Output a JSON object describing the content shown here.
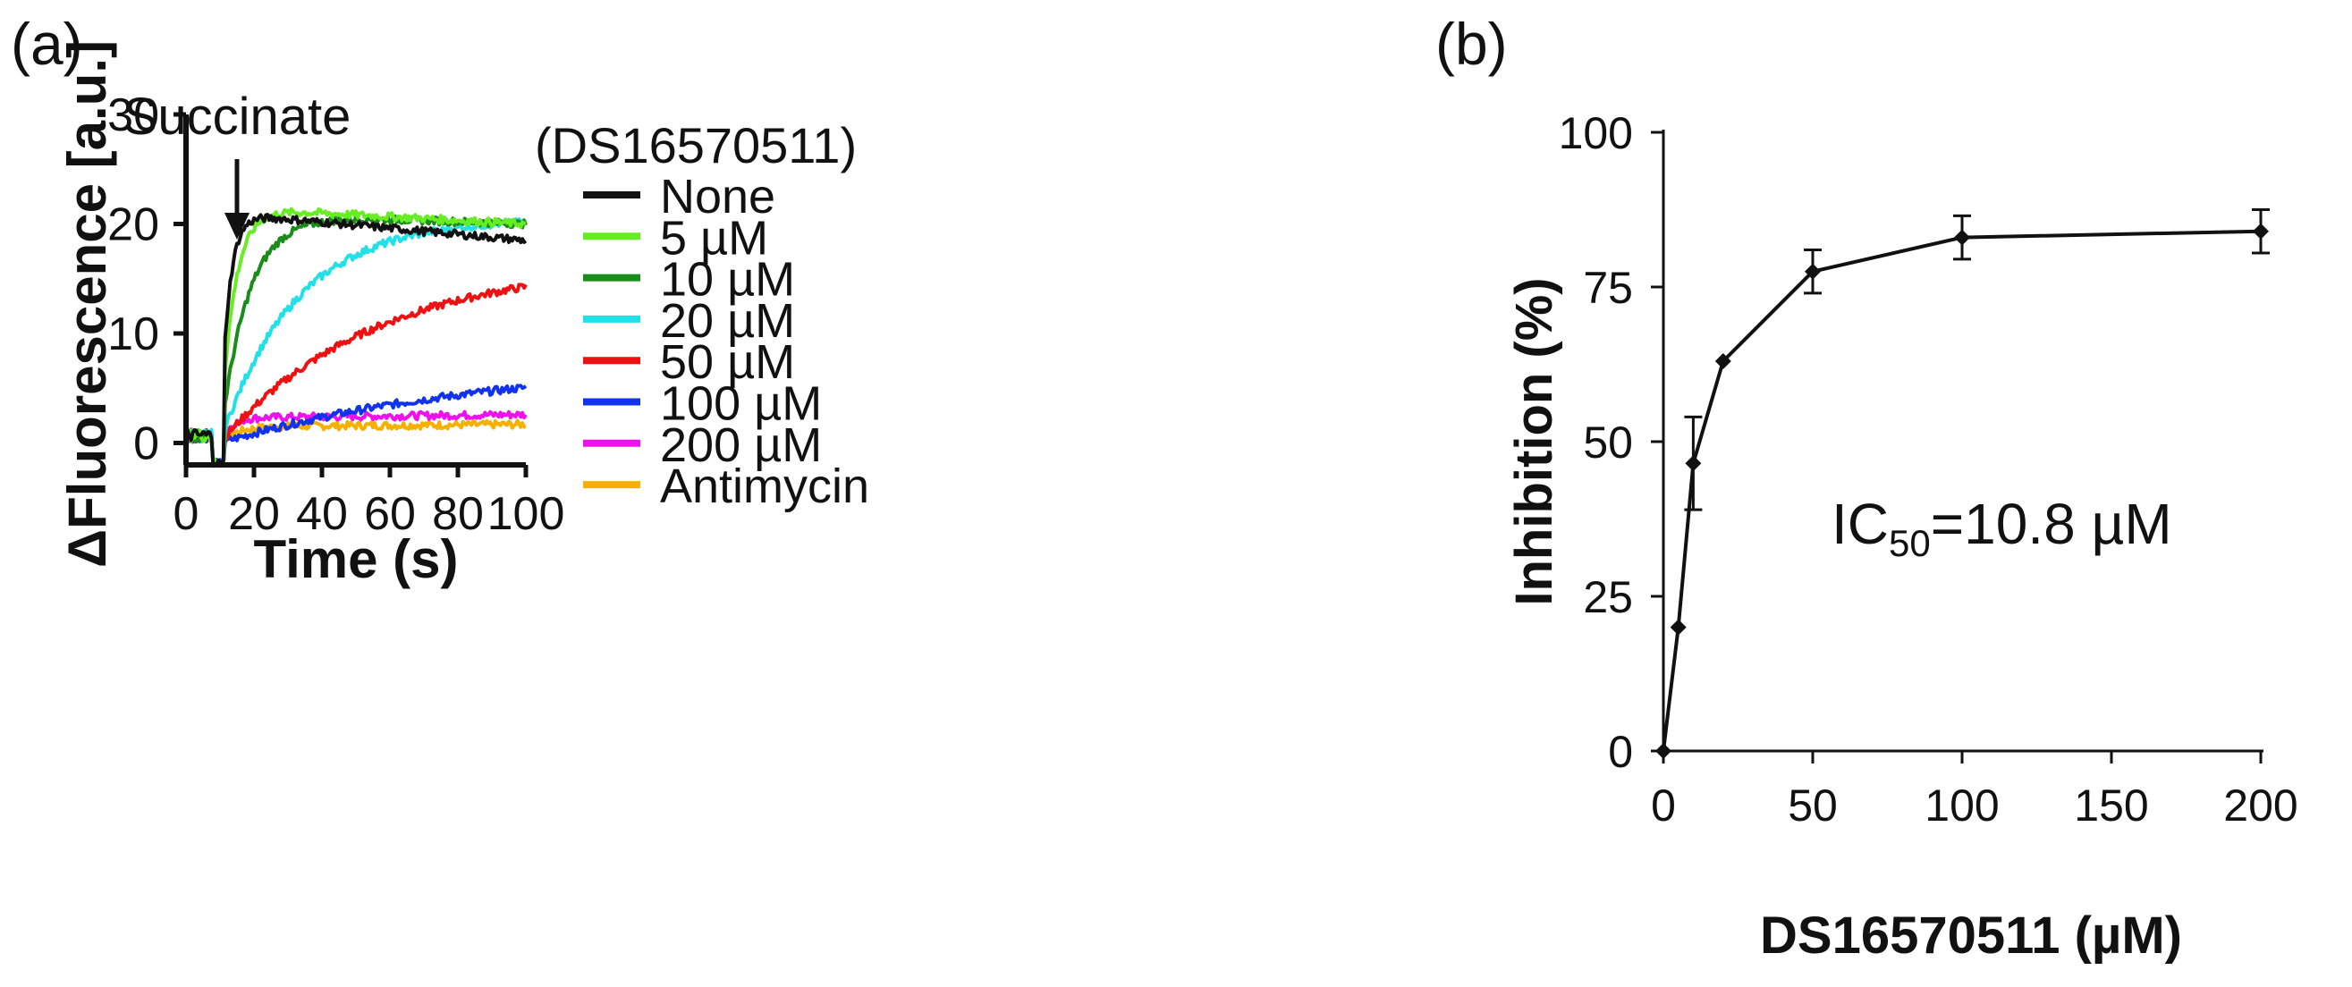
{
  "panels": {
    "a_label": "(a)",
    "b_label": "(b)"
  },
  "chart_data": [
    {
      "id": "a",
      "type": "line",
      "title": "",
      "xlabel": "Time (s)",
      "ylabel": "ΔFluorescence [a.u.]",
      "xlim": [
        0,
        100
      ],
      "ylim": [
        -2,
        30
      ],
      "xticks": [
        0,
        20,
        40,
        60,
        80,
        100
      ],
      "yticks": [
        0,
        10,
        20,
        30
      ],
      "grid": false,
      "annotation": {
        "text": "Succinate",
        "x": 15
      },
      "legend_title": "(DS16570511)",
      "legend_position": "right",
      "series": [
        {
          "name": "None",
          "color": "#111111",
          "plateau": 21,
          "tau": 2.5,
          "drift": -2.5
        },
        {
          "name": "5 µM",
          "color": "#66ee22",
          "plateau": 21.5,
          "tau": 4,
          "drift": -1.5
        },
        {
          "name": "10 µM",
          "color": "#1a8c1a",
          "plateau": 21,
          "tau": 8,
          "drift": -1
        },
        {
          "name": "20 µM",
          "color": "#22e0e8",
          "plateau": 20.5,
          "tau": 22,
          "drift": 0
        },
        {
          "name": "50 µM",
          "color": "#ee1111",
          "plateau": 16.5,
          "tau": 45,
          "drift": 0
        },
        {
          "name": "100 µM",
          "color": "#1133ee",
          "plateau": 7.5,
          "tau": 80,
          "drift": 0
        },
        {
          "name": "200 µM",
          "color": "#ee11ee",
          "plateau": 2.3,
          "tau": 3,
          "drift": 0.3
        },
        {
          "name": "Antimycin",
          "color": "#f5b000",
          "plateau": 1.5,
          "tau": 5,
          "drift": 0.2
        }
      ]
    },
    {
      "id": "b",
      "type": "line",
      "title": "",
      "xlabel": "DS16570511 (µM)",
      "ylabel": "Inhibition (%)",
      "xlim": [
        0,
        200
      ],
      "ylim": [
        0,
        100
      ],
      "xticks": [
        0,
        50,
        100,
        150,
        200
      ],
      "yticks": [
        0,
        25,
        50,
        75,
        100
      ],
      "grid": false,
      "annotation": {
        "text_main": "IC",
        "text_sub": "50",
        "text_rest": "=10.8 µM"
      },
      "series": [
        {
          "name": "Inhibition",
          "x": [
            0,
            5,
            10,
            20,
            50,
            100,
            200
          ],
          "y": [
            0,
            20,
            46.5,
            63,
            77.5,
            83,
            84
          ],
          "error": [
            0,
            0.5,
            7.5,
            0.5,
            3.5,
            3.5,
            3.5
          ]
        }
      ]
    }
  ]
}
